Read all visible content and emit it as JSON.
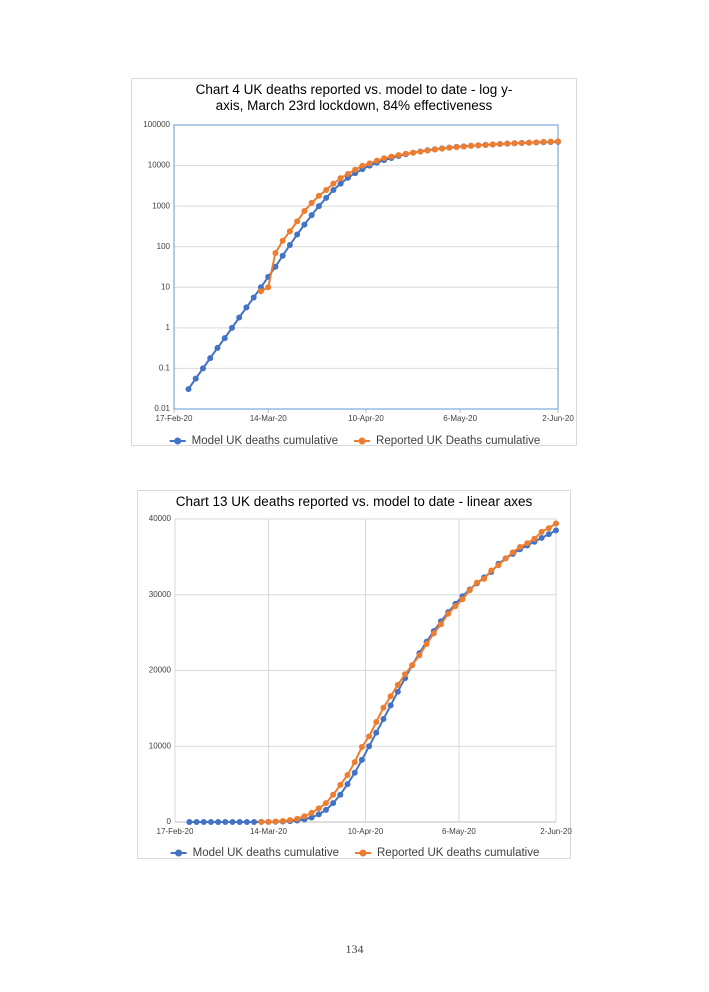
{
  "chart_data": [
    {
      "type": "line",
      "title": "Chart 4 UK deaths reported vs. model to date - log y-axis, March 23rd lockdown, 84% effectiveness",
      "log_y": true,
      "grid": true,
      "xgrid": false,
      "legend": "bottom",
      "x": [
        "21-Feb-20",
        "23-Feb-20",
        "25-Feb-20",
        "27-Feb-20",
        "29-Feb-20",
        "2-Mar-20",
        "4-Mar-20",
        "6-Mar-20",
        "8-Mar-20",
        "10-Mar-20",
        "12-Mar-20",
        "14-Mar-20",
        "16-Mar-20",
        "18-Mar-20",
        "20-Mar-20",
        "22-Mar-20",
        "24-Mar-20",
        "26-Mar-20",
        "28-Mar-20",
        "30-Mar-20",
        "1-Apr-20",
        "3-Apr-20",
        "5-Apr-20",
        "7-Apr-20",
        "9-Apr-20",
        "11-Apr-20",
        "13-Apr-20",
        "15-Apr-20",
        "17-Apr-20",
        "19-Apr-20",
        "21-Apr-20",
        "23-Apr-20",
        "25-Apr-20",
        "27-Apr-20",
        "29-Apr-20",
        "1-May-20",
        "3-May-20",
        "5-May-20",
        "7-May-20",
        "9-May-20",
        "11-May-20",
        "13-May-20",
        "15-May-20",
        "17-May-20",
        "19-May-20",
        "21-May-20",
        "23-May-20",
        "25-May-20",
        "27-May-20",
        "29-May-20",
        "31-May-20",
        "2-Jun-20"
      ],
      "series": [
        {
          "name": "Model UK deaths cumulative",
          "color": "#4472c4",
          "values": [
            0.031,
            0.056,
            0.1,
            0.18,
            0.32,
            0.56,
            1.0,
            1.8,
            3.2,
            5.6,
            10,
            18,
            32,
            60,
            110,
            200,
            350,
            600,
            1000,
            1600,
            2500,
            3600,
            5000,
            6500,
            8200,
            10000,
            11800,
            13600,
            15400,
            17200,
            19000,
            20700,
            22300,
            23800,
            25200,
            26500,
            27700,
            28800,
            29800,
            30700,
            31500,
            32300,
            33000,
            34100,
            34800,
            35400,
            36000,
            36500,
            37000,
            37500,
            38000,
            38500
          ]
        },
        {
          "name": "Reported UK Deaths cumulative",
          "color": "#ed7d31",
          "values": [
            null,
            null,
            null,
            null,
            null,
            null,
            null,
            null,
            null,
            null,
            8,
            10,
            70,
            140,
            240,
            420,
            760,
            1200,
            1800,
            2500,
            3600,
            4900,
            6200,
            7900,
            9900,
            11300,
            13200,
            15100,
            16600,
            18100,
            19500,
            20700,
            22000,
            23500,
            24900,
            26100,
            27500,
            28500,
            29400,
            30600,
            31600,
            32100,
            33200,
            33900,
            34800,
            35600,
            36300,
            36800,
            37400,
            38300,
            38800,
            39400
          ]
        }
      ],
      "xlim": [
        "17-Feb-20",
        "2-Jun-20"
      ],
      "xticks": [
        "17-Feb-20",
        "14-Mar-20",
        "10-Apr-20",
        "6-May-20",
        "2-Jun-20"
      ],
      "ylim": [
        0.01,
        100000
      ],
      "yticks": [
        0.01,
        0.1,
        1,
        10,
        100,
        1000,
        10000,
        100000
      ]
    },
    {
      "type": "line",
      "title": "Chart 13 UK deaths reported vs. model to date -  linear axes",
      "log_y": false,
      "grid": true,
      "xgrid": true,
      "legend": "bottom",
      "x": [
        "21-Feb-20",
        "23-Feb-20",
        "25-Feb-20",
        "27-Feb-20",
        "29-Feb-20",
        "2-Mar-20",
        "4-Mar-20",
        "6-Mar-20",
        "8-Mar-20",
        "10-Mar-20",
        "12-Mar-20",
        "14-Mar-20",
        "16-Mar-20",
        "18-Mar-20",
        "20-Mar-20",
        "22-Mar-20",
        "24-Mar-20",
        "26-Mar-20",
        "28-Mar-20",
        "30-Mar-20",
        "1-Apr-20",
        "3-Apr-20",
        "5-Apr-20",
        "7-Apr-20",
        "9-Apr-20",
        "11-Apr-20",
        "13-Apr-20",
        "15-Apr-20",
        "17-Apr-20",
        "19-Apr-20",
        "21-Apr-20",
        "23-Apr-20",
        "25-Apr-20",
        "27-Apr-20",
        "29-Apr-20",
        "1-May-20",
        "3-May-20",
        "5-May-20",
        "7-May-20",
        "9-May-20",
        "11-May-20",
        "13-May-20",
        "15-May-20",
        "17-May-20",
        "19-May-20",
        "21-May-20",
        "23-May-20",
        "25-May-20",
        "27-May-20",
        "29-May-20",
        "31-May-20",
        "2-Jun-20"
      ],
      "series": [
        {
          "name": "Model UK deaths cumulative",
          "color": "#4472c4",
          "values": [
            0.031,
            0.056,
            0.1,
            0.18,
            0.32,
            0.56,
            1.0,
            1.8,
            3.2,
            5.6,
            10,
            18,
            32,
            60,
            110,
            200,
            350,
            600,
            1000,
            1600,
            2500,
            3600,
            5000,
            6500,
            8200,
            10000,
            11800,
            13600,
            15400,
            17200,
            19000,
            20700,
            22300,
            23800,
            25200,
            26500,
            27700,
            28800,
            29800,
            30700,
            31500,
            32300,
            33000,
            34100,
            34800,
            35400,
            36000,
            36500,
            37000,
            37500,
            38000,
            38500
          ]
        },
        {
          "name": "Reported UK deaths cumulative",
          "color": "#ed7d31",
          "values": [
            null,
            null,
            null,
            null,
            null,
            null,
            null,
            null,
            null,
            null,
            8,
            10,
            70,
            140,
            240,
            420,
            760,
            1200,
            1800,
            2500,
            3600,
            4900,
            6200,
            7900,
            9900,
            11300,
            13200,
            15100,
            16600,
            18100,
            19500,
            20700,
            22000,
            23500,
            24900,
            26100,
            27500,
            28500,
            29400,
            30600,
            31600,
            32100,
            33200,
            33900,
            34800,
            35600,
            36300,
            36800,
            37400,
            38300,
            38800,
            39400
          ]
        }
      ],
      "xlim": [
        "17-Feb-20",
        "2-Jun-20"
      ],
      "xticks": [
        "17-Feb-20",
        "14-Mar-20",
        "10-Apr-20",
        "6-May-20",
        "2-Jun-20"
      ],
      "ylim": [
        0,
        40000
      ],
      "yticks": [
        0,
        10000,
        20000,
        30000,
        40000
      ]
    }
  ],
  "page_number": "134"
}
